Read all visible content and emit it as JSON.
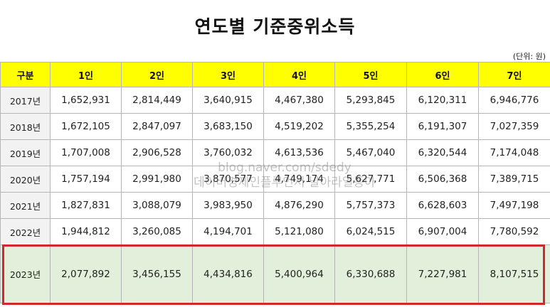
{
  "title": "연도별 기준중위소득",
  "unit_note": "(단위: 원)",
  "table": {
    "headers": [
      "구분",
      "1인",
      "2인",
      "3인",
      "4인",
      "5인",
      "6인",
      "7인"
    ],
    "rows": [
      {
        "year": "2017년",
        "values": [
          "1,652,931",
          "2,814,449",
          "3,640,915",
          "4,467,380",
          "5,293,845",
          "6,120,311",
          "6,946,776"
        ]
      },
      {
        "year": "2018년",
        "values": [
          "1,672,105",
          "2,847,097",
          "3,683,150",
          "4,519,202",
          "5,355,254",
          "6,191,307",
          "7,027,359"
        ]
      },
      {
        "year": "2019년",
        "values": [
          "1,707,008",
          "2,906,528",
          "3,760,032",
          "4,613,536",
          "5,467,040",
          "6,320,544",
          "7,174,048"
        ]
      },
      {
        "year": "2020년",
        "values": [
          "1,757,194",
          "2,991,980",
          "3,870,577",
          "4,749,174",
          "5,627,771",
          "6,506,368",
          "7,389,715"
        ]
      },
      {
        "year": "2021년",
        "values": [
          "1,827,831",
          "3,088,079",
          "3,983,950",
          "4,876,290",
          "5,757,373",
          "6,628,603",
          "7,497,198"
        ]
      },
      {
        "year": "2022년",
        "values": [
          "1,944,812",
          "3,260,085",
          "4,194,701",
          "5,121,080",
          "6,024,515",
          "6,907,004",
          "7,780,592"
        ]
      },
      {
        "year": "2023년",
        "values": [
          "2,077,892",
          "3,456,155",
          "4,434,816",
          "5,400,964",
          "6,330,688",
          "7,227,981",
          "8,107,515"
        ]
      }
    ]
  },
  "watermark": {
    "line1": "blog.naver.com/sdedy",
    "line2": "데이버경제인플루언서 날아라일동아"
  },
  "colors": {
    "header_bg": "#ffff00",
    "highlight_bg": "#e2efda",
    "highlight_border": "#d0282e"
  }
}
